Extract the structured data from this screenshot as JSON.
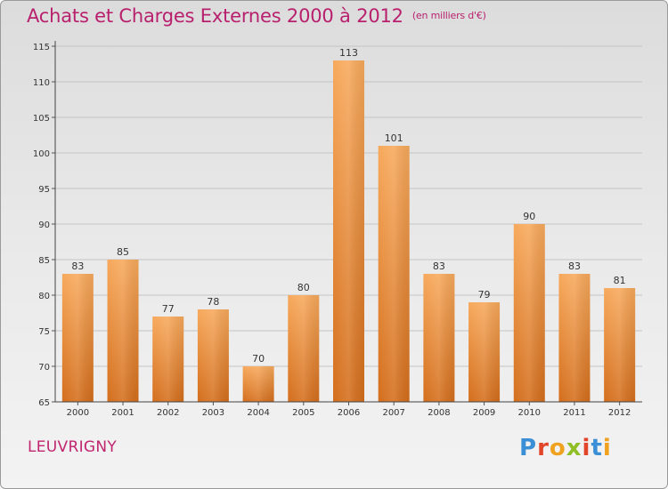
{
  "header": {
    "title": "Achats et Charges Externes 2000 à 2012",
    "subtitle": "(en milliers d'€)"
  },
  "footer": {
    "commune": "LEUVRIGNY",
    "logo_text": "Proxiti"
  },
  "colors": {
    "title": "#b8206e",
    "bar_light": "#f6a65a",
    "bar_dark": "#d9731f"
  },
  "chart_data": {
    "type": "bar",
    "title": "Achats et Charges Externes 2000 à 2012",
    "unit": "(en milliers d'€)",
    "categories": [
      "2000",
      "2001",
      "2002",
      "2003",
      "2004",
      "2005",
      "2006",
      "2007",
      "2008",
      "2009",
      "2010",
      "2011",
      "2012"
    ],
    "values": [
      83,
      85,
      77,
      78,
      70,
      80,
      113,
      101,
      83,
      79,
      90,
      83,
      81
    ],
    "ylim": [
      65,
      115
    ],
    "yticks": [
      65,
      70,
      75,
      80,
      85,
      90,
      95,
      100,
      105,
      110,
      115
    ],
    "grid": true,
    "xlabel": "",
    "ylabel": ""
  }
}
